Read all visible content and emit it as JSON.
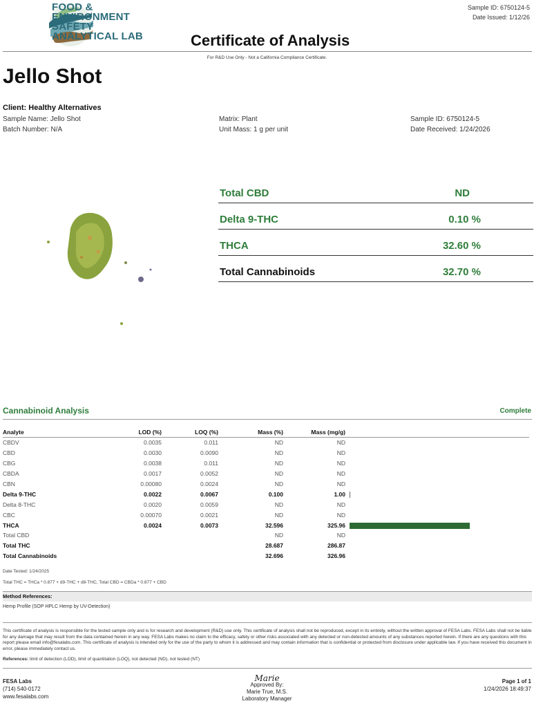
{
  "header": {
    "logo_lines": [
      "FOOD &",
      "ENVIRONMENT",
      "SAFETY",
      "ANALYTICAL LAB"
    ],
    "sample_id": "Sample ID: 6750124-5",
    "date_issued": "Date Issued: 1/12/26",
    "title": "Certificate of Analysis",
    "rnd_note": "For R&D Use Only - Not a California Compliance Certificate."
  },
  "product": {
    "name": "Jello Shot",
    "client": "Client: Healthy Alternatives",
    "sample_name": "Sample Name: Jello Shot",
    "batch": "Batch Number: N/A",
    "matrix": "Matrix: Plant",
    "unit_mass": "Unit Mass: 1 g per unit",
    "sample_id": "Sample ID: 6750124-5",
    "date_received": "Date Received: 1/24/2026"
  },
  "summary": [
    {
      "label": "Total CBD",
      "value": "ND",
      "total": false
    },
    {
      "label": "Delta 9-THC",
      "value": "0.10 %",
      "total": false
    },
    {
      "label": "THCA",
      "value": "32.60 %",
      "total": false
    },
    {
      "label": "Total Cannabinoids",
      "value": "32.70 %",
      "total": true
    }
  ],
  "analysis": {
    "title": "Cannabinoid Analysis",
    "status": "Complete",
    "headers": [
      "Analyte",
      "LOD (%)",
      "LOQ (%)",
      "Mass (%)",
      "Mass (mg/g)"
    ],
    "max_mg_g": 326.96,
    "rows": [
      {
        "analyte": "CBDV",
        "lod": "0.0035",
        "loq": "0.011",
        "mass_pct": "ND",
        "mass_mg": "ND",
        "bold": false,
        "bar": 0
      },
      {
        "analyte": "CBD",
        "lod": "0.0030",
        "loq": "0.0090",
        "mass_pct": "ND",
        "mass_mg": "ND",
        "bold": false,
        "bar": 0
      },
      {
        "analyte": "CBG",
        "lod": "0.0038",
        "loq": "0.011",
        "mass_pct": "ND",
        "mass_mg": "ND",
        "bold": false,
        "bar": 0
      },
      {
        "analyte": "CBDA",
        "lod": "0.0017",
        "loq": "0.0052",
        "mass_pct": "ND",
        "mass_mg": "ND",
        "bold": false,
        "bar": 0
      },
      {
        "analyte": "CBN",
        "lod": "0.00080",
        "loq": "0.0024",
        "mass_pct": "ND",
        "mass_mg": "ND",
        "bold": false,
        "bar": 0
      },
      {
        "analyte": "Delta 9-THC",
        "lod": "0.0022",
        "loq": "0.0067",
        "mass_pct": "0.100",
        "mass_mg": "1.00",
        "bold": true,
        "bar": 1.0
      },
      {
        "analyte": "Delta 8-THC",
        "lod": "0.0020",
        "loq": "0.0059",
        "mass_pct": "ND",
        "mass_mg": "ND",
        "bold": false,
        "bar": 0
      },
      {
        "analyte": "CBC",
        "lod": "0.00070",
        "loq": "0.0021",
        "mass_pct": "ND",
        "mass_mg": "ND",
        "bold": false,
        "bar": 0
      },
      {
        "analyte": "THCA",
        "lod": "0.0024",
        "loq": "0.0073",
        "mass_pct": "32.596",
        "mass_mg": "325.96",
        "bold": true,
        "bar": 325.96
      },
      {
        "analyte": "Total CBD",
        "lod": "",
        "loq": "",
        "mass_pct": "ND",
        "mass_mg": "ND",
        "bold": false,
        "bar": 0
      },
      {
        "analyte": "Total THC",
        "lod": "",
        "loq": "",
        "mass_pct": "28.687",
        "mass_mg": "286.87",
        "bold": true,
        "bar": 0
      },
      {
        "analyte": "Total Cannabinoids",
        "lod": "",
        "loq": "",
        "mass_pct": "32.696",
        "mass_mg": "326.96",
        "bold": true,
        "bar": 0
      }
    ],
    "date_tested": "Date Tested: 1/24/2025",
    "formula": "Total THC = THCa * 0.877 + d9-THC + d8-THC, Total CBD = CBDa * 0.877 + CBD"
  },
  "methods": {
    "title": "Method References:",
    "body": "Hemp Profile (SOP HPLC Hemp by UV-Detection)"
  },
  "disclaimer": "This certificate of analysis is responsible for the tested sample only and is for research and development (R&D) use only. This certificate of analysis shall not be reproduced, except in its entirety, without the written approval of FESA Labs. FESA Labs shall not be liable for any damage that may result from the data contained herein in any way. FESA Labs makes no claim to the efficacy, safety or other risks associated with any detected or non-detected amounts of any substances reported herein. If there are any questions with this report please email info@fesalabs.com. This certificate of analysis is intended only for the use of the party to whom it is addressed and may contain information that is confidential or protected from disclosure under applicable law. If you have received this document in error, please immediately contact us.",
  "references_label": "References:",
  "references": " limit of detection (LOD), limit of quantitation (LOQ), not detected (ND), not tested (NT)",
  "footer": {
    "company": "FESA Labs",
    "phone": "(714) 540-0172",
    "website": "www.fesalabs.com",
    "signature": "Marie",
    "approved_by": "Approved By:",
    "approver": "Marie True, M.S.",
    "approver_title": "Laboratory Manager",
    "page": "Page 1 of 1",
    "timestamp": "1/24/2026 18:49:37"
  },
  "colors": {
    "accent_green": "#2e7d3a",
    "bar_green": "#2e6b34",
    "logo_teal": "#2b6b7a"
  }
}
